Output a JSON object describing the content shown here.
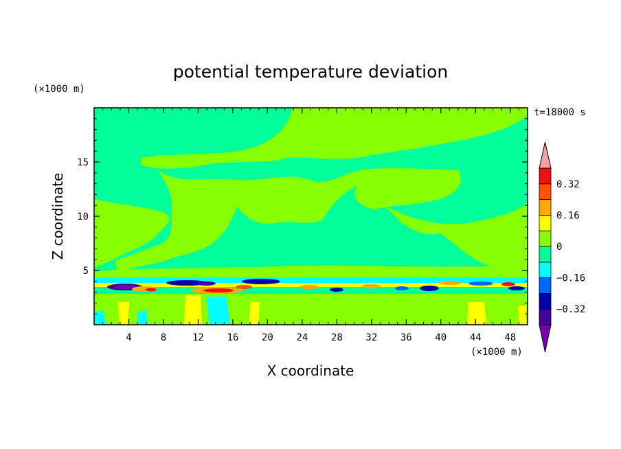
{
  "chart_data": {
    "type": "heatmap",
    "title": "potential temperature deviation",
    "xlabel": "X coordinate",
    "ylabel": "Z coordinate",
    "x_unit": "(×1000 m)",
    "y_unit": "(×1000 m)",
    "time_label": "t=18000 s",
    "xlim": [
      0,
      50
    ],
    "ylim": [
      0,
      20
    ],
    "x_ticks": [
      4,
      8,
      12,
      16,
      20,
      24,
      28,
      32,
      36,
      40,
      44,
      48
    ],
    "y_ticks": [
      5,
      10,
      15
    ],
    "colorbar": {
      "levels": [
        -0.4,
        -0.32,
        -0.24,
        -0.16,
        -0.08,
        0,
        0.08,
        0.16,
        0.24,
        0.32,
        0.4
      ],
      "labeled_levels": [
        0.32,
        0.16,
        0,
        -0.16,
        -0.32
      ],
      "labels": [
        "0.32",
        "0.16",
        "0",
        "−0.16",
        "−0.32"
      ],
      "colors": [
        "#7b00b3",
        "#440099",
        "#0000aa",
        "#0066ff",
        "#00ffff",
        "#00ff99",
        "#88ff00",
        "#ffff00",
        "#ffaa00",
        "#ff5500",
        "#ee1111",
        "#f5a0a0"
      ]
    }
  }
}
